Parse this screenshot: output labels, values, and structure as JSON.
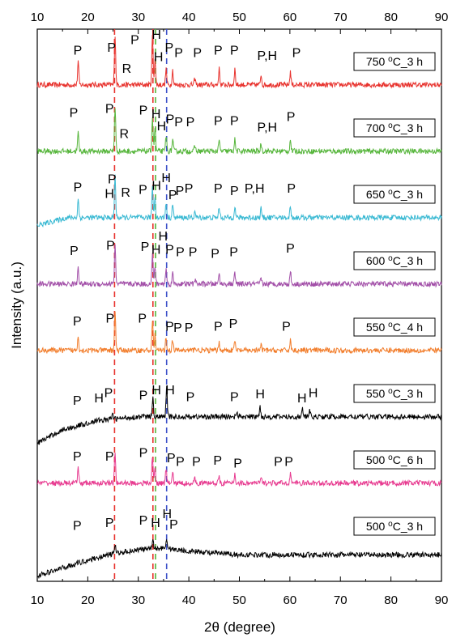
{
  "chart_data": {
    "type": "line",
    "xlabel": "2θ (degree)",
    "ylabel": "Intensity (a.u.)",
    "xlim": [
      10,
      90
    ],
    "xticks": [
      10,
      20,
      30,
      40,
      50,
      60,
      70,
      80,
      90
    ],
    "xtick_labels": [
      "10",
      "20",
      "30",
      "40",
      "50",
      "60",
      "70",
      "80",
      "90"
    ],
    "ytick_labels": false,
    "grid": false,
    "reference_lines": [
      {
        "x": 25.3,
        "color": "#e8322d",
        "style": "dashed"
      },
      {
        "x": 32.9,
        "color": "#e8322d",
        "style": "dashed"
      },
      {
        "x": 33.4,
        "color": "#55b53a",
        "style": "dashed"
      },
      {
        "x": 35.6,
        "color": "#3a4fc8",
        "style": "dashed"
      }
    ],
    "series": [
      {
        "name": "750 °C_3 h",
        "name_main": "750 °C_3 h",
        "name_sup": "",
        "name_pre": "750 ",
        "name_deg": "o",
        "name_post": "C_3 h",
        "color": "#e8322d",
        "offset": 7,
        "baseline": [
          [
            10,
            0.05
          ],
          [
            90,
            0.05
          ]
        ],
        "peaks": [
          [
            18.1,
            0.45
          ],
          [
            25.4,
            0.95
          ],
          [
            32.8,
            0.95
          ],
          [
            33.3,
            0.5
          ],
          [
            35.5,
            0.3
          ],
          [
            36.8,
            0.28
          ],
          [
            41.2,
            0.12
          ],
          [
            46.0,
            0.3
          ],
          [
            49.1,
            0.3
          ],
          [
            54.3,
            0.2
          ],
          [
            60.1,
            0.25
          ]
        ],
        "labels": [
          {
            "text": "P",
            "x": 18.0,
            "dy": 0.62
          },
          {
            "text": "P",
            "x": 24.7,
            "dy": 0.68
          },
          {
            "text": "P",
            "x": 29.3,
            "dy": 0.82
          },
          {
            "text": "H",
            "x": 33.6,
            "dy": 0.92
          },
          {
            "text": "R",
            "x": 27.7,
            "dy": 0.28
          },
          {
            "text": "H",
            "x": 34.0,
            "dy": 0.5
          },
          {
            "text": "P",
            "x": 36.1,
            "dy": 0.68
          },
          {
            "text": "P",
            "x": 38.0,
            "dy": 0.58
          },
          {
            "text": "P",
            "x": 41.7,
            "dy": 0.58
          },
          {
            "text": "P",
            "x": 45.8,
            "dy": 0.62
          },
          {
            "text": "P",
            "x": 49.0,
            "dy": 0.62
          },
          {
            "text": "P,H",
            "x": 55.5,
            "dy": 0.52
          },
          {
            "text": "P",
            "x": 61.3,
            "dy": 0.58
          }
        ]
      },
      {
        "name": "700 °C_3 h",
        "name_main": "700 °C_3 h",
        "name_sup": "",
        "name_pre": "700 ",
        "name_deg": "o",
        "name_post": "C_3 h",
        "color": "#55b53a",
        "offset": 6,
        "baseline": [
          [
            10,
            0.05
          ],
          [
            90,
            0.05
          ]
        ],
        "peaks": [
          [
            18.1,
            0.35
          ],
          [
            25.4,
            0.85
          ],
          [
            32.8,
            0.65
          ],
          [
            33.3,
            0.45
          ],
          [
            35.5,
            0.3
          ],
          [
            36.8,
            0.22
          ],
          [
            41.2,
            0.1
          ],
          [
            46.0,
            0.2
          ],
          [
            49.1,
            0.22
          ],
          [
            54.3,
            0.15
          ],
          [
            60.1,
            0.22
          ]
        ],
        "labels": [
          {
            "text": "P",
            "x": 17.2,
            "dy": 0.7
          },
          {
            "text": "P",
            "x": 24.3,
            "dy": 0.78
          },
          {
            "text": "R",
            "x": 27.2,
            "dy": 0.3
          },
          {
            "text": "P",
            "x": 31.0,
            "dy": 0.75
          },
          {
            "text": "H",
            "x": 33.5,
            "dy": 0.68
          },
          {
            "text": "H",
            "x": 34.6,
            "dy": 0.45
          },
          {
            "text": "P",
            "x": 36.3,
            "dy": 0.58
          },
          {
            "text": "P",
            "x": 38.0,
            "dy": 0.52
          },
          {
            "text": "P",
            "x": 40.3,
            "dy": 0.52
          },
          {
            "text": "P",
            "x": 45.8,
            "dy": 0.55
          },
          {
            "text": "P",
            "x": 49.0,
            "dy": 0.55
          },
          {
            "text": "P,H",
            "x": 55.5,
            "dy": 0.42
          },
          {
            "text": "P",
            "x": 60.2,
            "dy": 0.62
          }
        ]
      },
      {
        "name": "650 °C_3 h",
        "name_main": "650 °C_3 h",
        "name_sup": "",
        "name_pre": "650 ",
        "name_deg": "o",
        "name_post": "C_3 h",
        "color": "#39b9d3",
        "offset": 5,
        "baseline": [
          [
            10,
            -0.1
          ],
          [
            16,
            0.05
          ],
          [
            90,
            0.05
          ]
        ],
        "peaks": [
          [
            18.1,
            0.35
          ],
          [
            25.4,
            0.8
          ],
          [
            32.8,
            0.6
          ],
          [
            33.3,
            0.4
          ],
          [
            35.5,
            0.3
          ],
          [
            36.8,
            0.25
          ],
          [
            41.2,
            0.12
          ],
          [
            46.0,
            0.2
          ],
          [
            49.1,
            0.22
          ],
          [
            54.3,
            0.18
          ],
          [
            60.1,
            0.22
          ]
        ],
        "labels": [
          {
            "text": "P",
            "x": 18.0,
            "dy": 0.55
          },
          {
            "text": "P",
            "x": 24.8,
            "dy": 0.7
          },
          {
            "text": "H",
            "x": 24.3,
            "dy": 0.42
          },
          {
            "text": "R",
            "x": 27.5,
            "dy": 0.45
          },
          {
            "text": "P",
            "x": 30.9,
            "dy": 0.5
          },
          {
            "text": "H",
            "x": 33.6,
            "dy": 0.58
          },
          {
            "text": "H",
            "x": 35.5,
            "dy": 0.72
          },
          {
            "text": "P",
            "x": 36.8,
            "dy": 0.4
          },
          {
            "text": "P",
            "x": 38.2,
            "dy": 0.48
          },
          {
            "text": "P",
            "x": 40.0,
            "dy": 0.52
          },
          {
            "text": "P",
            "x": 45.8,
            "dy": 0.52
          },
          {
            "text": "P",
            "x": 49.0,
            "dy": 0.48
          },
          {
            "text": "P,H",
            "x": 53.0,
            "dy": 0.52
          },
          {
            "text": "P",
            "x": 60.3,
            "dy": 0.52
          }
        ]
      },
      {
        "name": "600 °C_3 h",
        "name_main": "600 °C_3 h",
        "name_sup": "",
        "name_pre": "600 ",
        "name_deg": "o",
        "name_post": "C_3 h",
        "color": "#a24fa8",
        "offset": 4,
        "baseline": [
          [
            10,
            0.05
          ],
          [
            90,
            0.05
          ]
        ],
        "peaks": [
          [
            18.1,
            0.35
          ],
          [
            25.4,
            0.75
          ],
          [
            32.8,
            0.55
          ],
          [
            33.3,
            0.35
          ],
          [
            35.5,
            0.3
          ],
          [
            36.8,
            0.2
          ],
          [
            41.2,
            0.1
          ],
          [
            46.0,
            0.2
          ],
          [
            49.1,
            0.2
          ],
          [
            54.3,
            0.1
          ],
          [
            60.1,
            0.25
          ]
        ],
        "labels": [
          {
            "text": "P",
            "x": 17.3,
            "dy": 0.6
          },
          {
            "text": "P",
            "x": 24.5,
            "dy": 0.7
          },
          {
            "text": "P",
            "x": 31.3,
            "dy": 0.68
          },
          {
            "text": "H",
            "x": 33.5,
            "dy": 0.62
          },
          {
            "text": "H",
            "x": 34.9,
            "dy": 0.88
          },
          {
            "text": "P",
            "x": 36.2,
            "dy": 0.62
          },
          {
            "text": "P",
            "x": 38.3,
            "dy": 0.58
          },
          {
            "text": "P",
            "x": 40.8,
            "dy": 0.58
          },
          {
            "text": "P",
            "x": 45.2,
            "dy": 0.55
          },
          {
            "text": "P",
            "x": 48.9,
            "dy": 0.58
          },
          {
            "text": "P",
            "x": 60.1,
            "dy": 0.65
          }
        ]
      },
      {
        "name": "550 °C_4 h",
        "name_main": "550 °C_4 h",
        "name_sup": "",
        "name_pre": "550 ",
        "name_deg": "o",
        "name_post": "C_4 h",
        "color": "#f27d2b",
        "offset": 3,
        "baseline": [
          [
            10,
            0.05
          ],
          [
            90,
            0.05
          ]
        ],
        "peaks": [
          [
            18.1,
            0.3
          ],
          [
            25.4,
            0.75
          ],
          [
            32.8,
            0.55
          ],
          [
            33.3,
            0.3
          ],
          [
            35.5,
            0.25
          ],
          [
            36.8,
            0.2
          ],
          [
            41.2,
            0.08
          ],
          [
            46.0,
            0.15
          ],
          [
            49.1,
            0.18
          ],
          [
            54.3,
            0.1
          ],
          [
            60.1,
            0.2
          ]
        ],
        "labels": [
          {
            "text": "P",
            "x": 17.9,
            "dy": 0.52
          },
          {
            "text": "P",
            "x": 24.4,
            "dy": 0.58
          },
          {
            "text": "P",
            "x": 30.8,
            "dy": 0.58
          },
          {
            "text": "P",
            "x": 36.2,
            "dy": 0.42
          },
          {
            "text": "P",
            "x": 37.8,
            "dy": 0.4
          },
          {
            "text": "P",
            "x": 40.0,
            "dy": 0.4
          },
          {
            "text": "P",
            "x": 45.8,
            "dy": 0.42
          },
          {
            "text": "P",
            "x": 48.8,
            "dy": 0.48
          },
          {
            "text": "P",
            "x": 59.3,
            "dy": 0.42
          }
        ]
      },
      {
        "name": "550 °C_3 h",
        "name_main": "550 °C_3 h",
        "name_sup": "",
        "name_pre": "550 ",
        "name_deg": "o",
        "name_post": "C_3 h",
        "color": "#000000",
        "offset": 2,
        "baseline": [
          [
            10,
            -0.45
          ],
          [
            15,
            -0.2
          ],
          [
            22,
            -0.02
          ],
          [
            30,
            0.05
          ],
          [
            90,
            0.05
          ]
        ],
        "peaks": [
          [
            24.9,
            0.12
          ],
          [
            32.9,
            0.35
          ],
          [
            35.6,
            0.55
          ],
          [
            49.5,
            0.12
          ],
          [
            54.1,
            0.2
          ],
          [
            62.5,
            0.15
          ],
          [
            63.9,
            0.15
          ]
        ],
        "labels": [
          {
            "text": "P",
            "x": 17.9,
            "dy": 0.28
          },
          {
            "text": "H",
            "x": 22.2,
            "dy": 0.32
          },
          {
            "text": "P",
            "x": 24.1,
            "dy": 0.42
          },
          {
            "text": "P",
            "x": 31.0,
            "dy": 0.38
          },
          {
            "text": "H",
            "x": 33.6,
            "dy": 0.48
          },
          {
            "text": "H",
            "x": 36.3,
            "dy": 0.48
          },
          {
            "text": "P",
            "x": 40.3,
            "dy": 0.35
          },
          {
            "text": "P",
            "x": 49.0,
            "dy": 0.35
          },
          {
            "text": "H",
            "x": 54.1,
            "dy": 0.4
          },
          {
            "text": "H",
            "x": 62.4,
            "dy": 0.32
          },
          {
            "text": "H",
            "x": 64.6,
            "dy": 0.42
          }
        ]
      },
      {
        "name": "500 °C_6 h",
        "name_main": "500 °C_6 h",
        "name_sup": "",
        "name_pre": "500 ",
        "name_deg": "o",
        "name_post": "C_6 h",
        "color": "#e7398f",
        "offset": 1,
        "baseline": [
          [
            10,
            0.05
          ],
          [
            90,
            0.05
          ]
        ],
        "peaks": [
          [
            18.1,
            0.3
          ],
          [
            25.4,
            0.6
          ],
          [
            32.8,
            0.5
          ],
          [
            33.3,
            0.3
          ],
          [
            35.5,
            0.25
          ],
          [
            36.8,
            0.2
          ],
          [
            41.2,
            0.08
          ],
          [
            46.0,
            0.15
          ],
          [
            49.1,
            0.18
          ],
          [
            54.3,
            0.1
          ],
          [
            60.1,
            0.2
          ]
        ],
        "labels": [
          {
            "text": "P",
            "x": 17.9,
            "dy": 0.48
          },
          {
            "text": "P",
            "x": 24.3,
            "dy": 0.48
          },
          {
            "text": "P",
            "x": 31.0,
            "dy": 0.55
          },
          {
            "text": "P",
            "x": 36.5,
            "dy": 0.45
          },
          {
            "text": "P",
            "x": 38.3,
            "dy": 0.38
          },
          {
            "text": "P",
            "x": 41.5,
            "dy": 0.38
          },
          {
            "text": "P",
            "x": 45.7,
            "dy": 0.4
          },
          {
            "text": "P",
            "x": 49.7,
            "dy": 0.35
          },
          {
            "text": "P",
            "x": 57.7,
            "dy": 0.38
          },
          {
            "text": "P",
            "x": 59.8,
            "dy": 0.38
          }
        ]
      },
      {
        "name": "500 °C_3 h",
        "name_main": "500 °C_3 h",
        "name_sup": "",
        "name_pre": "500 ",
        "name_deg": "o",
        "name_post": "C_3 h",
        "color": "#000000",
        "offset": 0,
        "baseline": [
          [
            10,
            -0.45
          ],
          [
            15,
            -0.3
          ],
          [
            20,
            -0.15
          ],
          [
            25,
            -0.03
          ],
          [
            30,
            0.05
          ],
          [
            35,
            0.08
          ],
          [
            40,
            0.02
          ],
          [
            50,
            -0.05
          ],
          [
            90,
            -0.05
          ]
        ],
        "peaks": [
          [
            25.4,
            0.15
          ],
          [
            32.9,
            0.15
          ],
          [
            35.6,
            0.2
          ]
        ],
        "labels": [
          {
            "text": "P",
            "x": 17.9,
            "dy": 0.42
          },
          {
            "text": "P",
            "x": 24.3,
            "dy": 0.48
          },
          {
            "text": "P",
            "x": 31.0,
            "dy": 0.52
          },
          {
            "text": "H",
            "x": 33.4,
            "dy": 0.48
          },
          {
            "text": "H",
            "x": 35.7,
            "dy": 0.65
          },
          {
            "text": "P",
            "x": 37.0,
            "dy": 0.45
          }
        ]
      }
    ]
  }
}
